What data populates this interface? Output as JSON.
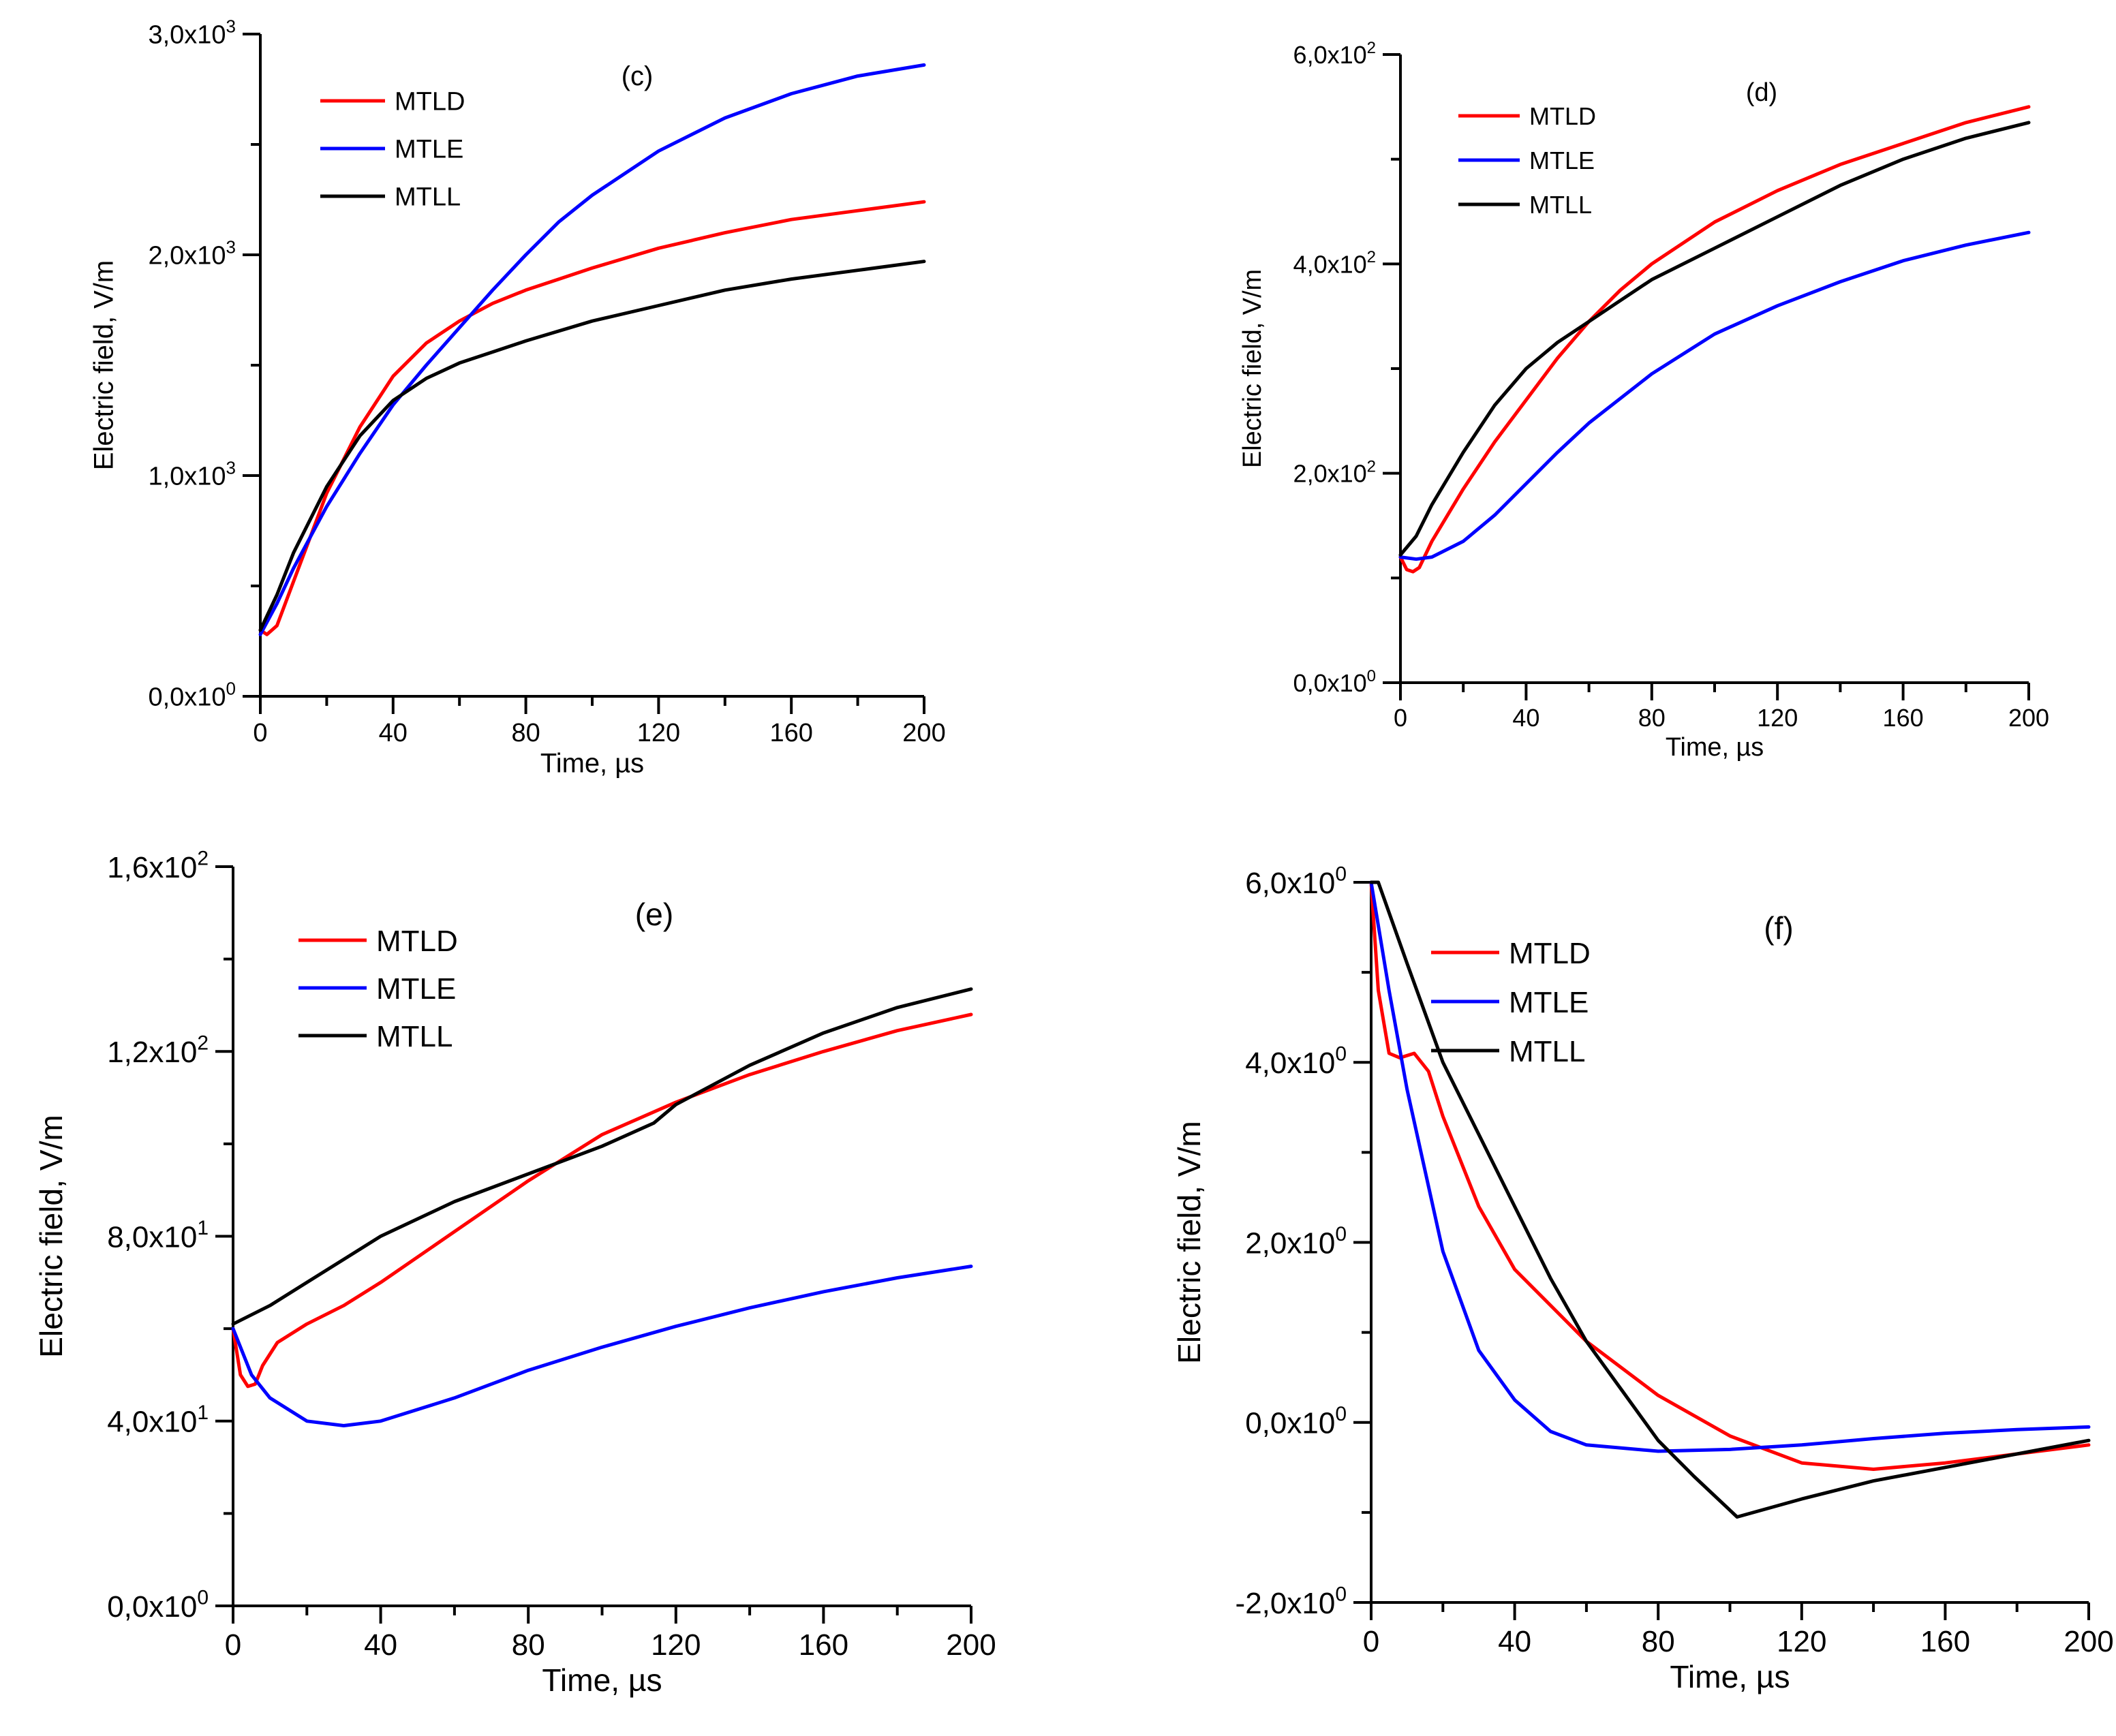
{
  "chart_data": [
    {
      "type": "line",
      "title": "(c)",
      "xlabel": "Time, µs",
      "ylabel": "Electric field, V/m",
      "xlim": [
        0,
        200
      ],
      "ylim": [
        0,
        3000
      ],
      "xticks": [
        0,
        40,
        80,
        120,
        160,
        200
      ],
      "xtick_labels": [
        "0",
        "40",
        "80",
        "120",
        "160",
        "200"
      ],
      "yticks": [
        0,
        1000,
        2000,
        3000
      ],
      "ytick_labels": [
        [
          "0,0x10",
          "0"
        ],
        [
          "1,0x10",
          "3"
        ],
        [
          "2,0x10",
          "3"
        ],
        [
          "3,0x10",
          "3"
        ]
      ],
      "legend_position": "top-left",
      "colors": {
        "MTLD": "#ff0000",
        "MTLE": "#0000ff",
        "MTLL": "#000000"
      },
      "series": [
        {
          "name": "MTLD",
          "x": [
            0,
            2,
            5,
            10,
            15,
            20,
            30,
            40,
            50,
            60,
            70,
            80,
            90,
            100,
            120,
            140,
            160,
            180,
            200
          ],
          "values": [
            300,
            280,
            320,
            520,
            720,
            920,
            1220,
            1450,
            1600,
            1700,
            1780,
            1840,
            1890,
            1940,
            2030,
            2100,
            2160,
            2200,
            2240
          ]
        },
        {
          "name": "MTLE",
          "x": [
            0,
            5,
            10,
            20,
            30,
            40,
            50,
            60,
            70,
            80,
            90,
            100,
            120,
            140,
            160,
            180,
            200
          ],
          "values": [
            280,
            420,
            580,
            860,
            1100,
            1320,
            1500,
            1670,
            1840,
            2000,
            2150,
            2270,
            2470,
            2620,
            2730,
            2810,
            2860
          ]
        },
        {
          "name": "MTLL",
          "x": [
            0,
            5,
            10,
            20,
            30,
            40,
            50,
            60,
            70,
            80,
            100,
            120,
            140,
            160,
            180,
            200
          ],
          "values": [
            300,
            460,
            650,
            950,
            1180,
            1340,
            1440,
            1510,
            1560,
            1610,
            1700,
            1770,
            1840,
            1890,
            1930,
            1970
          ]
        }
      ]
    },
    {
      "type": "line",
      "title": "(d)",
      "xlabel": "Time, µs",
      "ylabel": "Electric field, V/m",
      "xlim": [
        0,
        200
      ],
      "ylim": [
        0,
        600
      ],
      "xticks": [
        0,
        40,
        80,
        120,
        160,
        200
      ],
      "xtick_labels": [
        "0",
        "40",
        "80",
        "120",
        "160",
        "200"
      ],
      "yticks": [
        0,
        200,
        400,
        600
      ],
      "ytick_labels": [
        [
          "0,0x10",
          "0"
        ],
        [
          "2,0x10",
          "2"
        ],
        [
          "4,0x10",
          "2"
        ],
        [
          "6,0x10",
          "2"
        ]
      ],
      "legend_position": "top-left",
      "colors": {
        "MTLD": "#ff0000",
        "MTLE": "#0000ff",
        "MTLL": "#000000"
      },
      "series": [
        {
          "name": "MTLD",
          "x": [
            0,
            2,
            4,
            6,
            10,
            20,
            30,
            40,
            50,
            60,
            70,
            80,
            100,
            120,
            140,
            160,
            180,
            200
          ],
          "values": [
            120,
            108,
            106,
            110,
            135,
            185,
            230,
            270,
            310,
            345,
            375,
            400,
            440,
            470,
            495,
            515,
            535,
            550
          ]
        },
        {
          "name": "MTLE",
          "x": [
            0,
            5,
            10,
            20,
            30,
            40,
            50,
            60,
            80,
            100,
            120,
            140,
            160,
            180,
            200
          ],
          "values": [
            120,
            118,
            120,
            135,
            160,
            190,
            220,
            248,
            295,
            333,
            360,
            383,
            403,
            418,
            430
          ]
        },
        {
          "name": "MTLL",
          "x": [
            0,
            5,
            10,
            20,
            30,
            40,
            50,
            60,
            70,
            80,
            100,
            120,
            140,
            160,
            180,
            200
          ],
          "values": [
            122,
            140,
            170,
            220,
            265,
            300,
            325,
            345,
            365,
            385,
            415,
            445,
            475,
            500,
            520,
            535
          ]
        }
      ]
    },
    {
      "type": "line",
      "title": "(e)",
      "xlabel": "Time, µs",
      "ylabel": "Electric field, V/m",
      "xlim": [
        0,
        200
      ],
      "ylim": [
        0,
        160
      ],
      "xticks": [
        0,
        40,
        80,
        120,
        160,
        200
      ],
      "xtick_labels": [
        "0",
        "40",
        "80",
        "120",
        "160",
        "200"
      ],
      "yticks": [
        0,
        40,
        80,
        120,
        160
      ],
      "ytick_labels": [
        [
          "0,0x10",
          "0"
        ],
        [
          "4,0x10",
          "1"
        ],
        [
          "8,0x10",
          "1"
        ],
        [
          "1,2x10",
          "2"
        ],
        [
          "1,6x10",
          "2"
        ]
      ],
      "legend_position": "top-left",
      "colors": {
        "MTLD": "#ff0000",
        "MTLE": "#0000ff",
        "MTLL": "#000000"
      },
      "series": [
        {
          "name": "MTLD",
          "x": [
            0,
            2,
            4,
            6,
            8,
            12,
            20,
            30,
            40,
            60,
            80,
            100,
            120,
            140,
            160,
            180,
            200
          ],
          "values": [
            60,
            50,
            47.5,
            48,
            52,
            57,
            61,
            65,
            70,
            81,
            92,
            102,
            109,
            115,
            120,
            124.5,
            128
          ]
        },
        {
          "name": "MTLE",
          "x": [
            0,
            5,
            10,
            20,
            30,
            40,
            60,
            80,
            100,
            120,
            140,
            160,
            180,
            200
          ],
          "values": [
            60,
            50,
            45,
            40,
            39,
            40,
            45,
            51,
            56,
            60.5,
            64.5,
            68,
            71,
            73.5
          ]
        },
        {
          "name": "MTLL",
          "x": [
            0,
            10,
            20,
            40,
            60,
            80,
            100,
            114,
            120,
            140,
            160,
            180,
            200
          ],
          "values": [
            61,
            65,
            70,
            80,
            87.5,
            93.5,
            99.5,
            104.5,
            108.5,
            117,
            124,
            129.5,
            133.5
          ]
        }
      ]
    },
    {
      "type": "line",
      "title": "(f)",
      "xlabel": "Time, µs",
      "ylabel": "Electric field, V/m",
      "xlim": [
        0,
        200
      ],
      "ylim": [
        -2,
        6
      ],
      "xticks": [
        0,
        40,
        80,
        120,
        160,
        200
      ],
      "xtick_labels": [
        "0",
        "40",
        "80",
        "120",
        "160",
        "200"
      ],
      "yticks": [
        -2,
        0,
        2,
        4,
        6
      ],
      "ytick_labels": [
        [
          "-2,0x10",
          "0"
        ],
        [
          "0,0x10",
          "0"
        ],
        [
          "2,0x10",
          "0"
        ],
        [
          "4,0x10",
          "0"
        ],
        [
          "6,0x10",
          "0"
        ]
      ],
      "legend_position": "top-left",
      "colors": {
        "MTLD": "#ff0000",
        "MTLE": "#0000ff",
        "MTLL": "#000000"
      },
      "series": [
        {
          "name": "MTLD",
          "x": [
            0,
            2,
            5,
            8,
            12,
            16,
            20,
            30,
            40,
            60,
            80,
            100,
            120,
            140,
            160,
            180,
            200
          ],
          "values": [
            6.0,
            4.8,
            4.1,
            4.05,
            4.1,
            3.9,
            3.4,
            2.4,
            1.7,
            0.9,
            0.3,
            -0.15,
            -0.45,
            -0.52,
            -0.45,
            -0.35,
            -0.25
          ]
        },
        {
          "name": "MTLE",
          "x": [
            0,
            5,
            10,
            15,
            20,
            30,
            40,
            50,
            60,
            80,
            100,
            120,
            140,
            160,
            180,
            200
          ],
          "values": [
            6.0,
            4.8,
            3.7,
            2.8,
            1.9,
            0.8,
            0.25,
            -0.1,
            -0.25,
            -0.32,
            -0.3,
            -0.25,
            -0.18,
            -0.12,
            -0.08,
            -0.05
          ]
        },
        {
          "name": "MTLL",
          "x": [
            0,
            2,
            10,
            20,
            30,
            40,
            50,
            60,
            70,
            80,
            90,
            102,
            120,
            140,
            160,
            180,
            200
          ],
          "values": [
            6.0,
            6.0,
            5.1,
            4.0,
            3.2,
            2.4,
            1.6,
            0.9,
            0.35,
            -0.2,
            -0.6,
            -1.05,
            -0.85,
            -0.65,
            -0.5,
            -0.35,
            -0.2
          ]
        }
      ]
    }
  ]
}
